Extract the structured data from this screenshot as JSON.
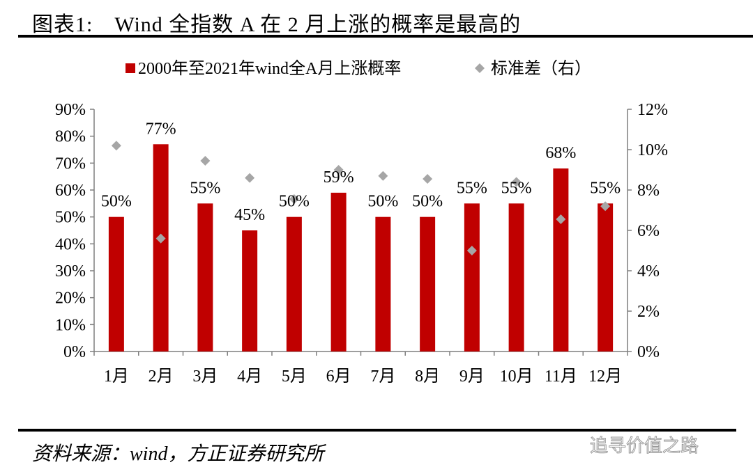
{
  "title": "图表1:　Wind 全指数 A 在 2 月上涨的概率是最高的",
  "source": "资料来源：wind，方正证券研究所",
  "watermark": "追寻价值之路",
  "chart_data": {
    "type": "bar",
    "categories": [
      "1月",
      "2月",
      "3月",
      "4月",
      "5月",
      "6月",
      "7月",
      "8月",
      "9月",
      "10月",
      "11月",
      "12月"
    ],
    "series": [
      {
        "name": "2000年至2021年wind全A月上涨概率",
        "type": "bar",
        "axis": "left",
        "color": "#C00000",
        "values": [
          50,
          77,
          55,
          45,
          50,
          59,
          50,
          50,
          55,
          55,
          68,
          55
        ],
        "labels": [
          "50%",
          "77%",
          "55%",
          "45%",
          "50%",
          "59%",
          "50%",
          "50%",
          "55%",
          "55%",
          "68%",
          "55%"
        ]
      },
      {
        "name": "标准差（右）",
        "type": "scatter",
        "axis": "right",
        "color": "#A6A6A6",
        "marker": "diamond",
        "values": [
          10.2,
          5.6,
          9.45,
          8.6,
          7.55,
          9.0,
          8.7,
          8.55,
          5.0,
          8.4,
          6.55,
          7.2
        ]
      }
    ],
    "yleft": {
      "ylim": [
        0,
        90
      ],
      "ticks": [
        "0%",
        "10%",
        "20%",
        "30%",
        "40%",
        "50%",
        "60%",
        "70%",
        "80%",
        "90%"
      ]
    },
    "yright": {
      "ylim": [
        0,
        12
      ],
      "ticks": [
        "0%",
        "2%",
        "4%",
        "6%",
        "8%",
        "10%",
        "12%"
      ]
    },
    "legend": "top",
    "grid": false
  }
}
